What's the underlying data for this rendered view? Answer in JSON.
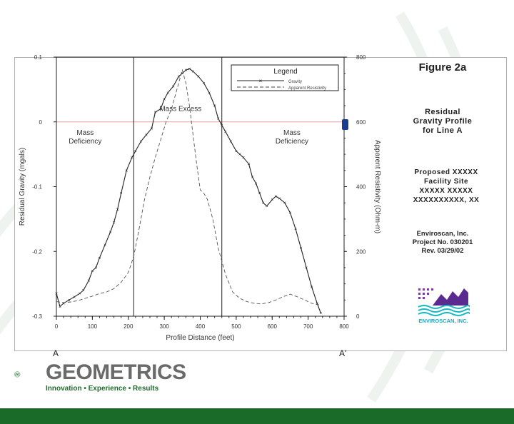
{
  "colors": {
    "brand_green": "#1a6b2a",
    "bar_green": "#1a6b2a",
    "curve": "#222222",
    "zero_line": "#e8a0a0"
  },
  "sidebar": {
    "figure": "Figure 2a",
    "title_lines": [
      "Residual",
      "Gravity Profile",
      "for Line A"
    ],
    "site_lines": [
      "Proposed XXXXX",
      "Facility Site",
      "XXXXX XXXXX",
      "XXXXXXXXXX, XX"
    ],
    "company_lines": [
      "Enviroscan, Inc.",
      "Project No. 030201",
      "Rev. 03/29/02"
    ],
    "logo_text": "ENVIROSCAN, INC."
  },
  "profile_ends": {
    "start": "A",
    "end": "A'"
  },
  "footer": {
    "brand": "GEOMETRICS",
    "tagline": "Innovation • Experience • Results"
  },
  "chart_data": {
    "type": "line",
    "xlabel": "Profile Distance (feet)",
    "ylabel": "Residual Gravity (mgals)",
    "y2label": "Apparent Resistivity (Ohm-m)",
    "xlim": [
      0,
      800
    ],
    "ylim": [
      -0.3,
      0.1
    ],
    "y2lim": [
      0,
      800
    ],
    "x_ticks": [
      0,
      100,
      200,
      300,
      400,
      500,
      600,
      700,
      800
    ],
    "y_ticks": [
      0.1,
      0,
      -0.1,
      -0.2,
      -0.3
    ],
    "y_tick_labels": [
      "0.1",
      "0",
      "-0.1",
      "-0.2",
      "-0.3"
    ],
    "y2_ticks": [
      800,
      600,
      400,
      200,
      0
    ],
    "y2_tick_labels": [
      "800",
      "600",
      "400",
      "200",
      "0"
    ],
    "region_boundaries_x": [
      215,
      460
    ],
    "zero_line_y": 0,
    "region_labels": [
      {
        "lines": [
          "Mass",
          "Deficiency"
        ],
        "x": 80,
        "y": -0.02
      },
      {
        "lines": [
          "Mass Excess"
        ],
        "x": 345,
        "y": 0.017
      },
      {
        "lines": [
          "Mass",
          "Deficiency"
        ],
        "x": 655,
        "y": -0.02
      }
    ],
    "legend": {
      "title": "Legend",
      "position": "top-right",
      "entries": [
        "Gravity",
        "Apparent Resistivity"
      ]
    },
    "series": [
      {
        "name": "Gravity",
        "axis": "left",
        "marker": "x",
        "x": [
          0,
          10,
          20,
          35,
          50,
          65,
          75,
          90,
          100,
          110,
          120,
          135,
          150,
          160,
          170,
          180,
          195,
          210,
          220,
          235,
          250,
          265,
          275,
          290,
          300,
          310,
          325,
          340,
          350,
          360,
          370,
          380,
          395,
          410,
          425,
          440,
          450,
          460,
          470,
          485,
          500,
          510,
          520,
          535,
          545,
          555,
          565,
          575,
          585,
          600,
          610,
          620,
          635,
          650,
          665,
          680,
          695,
          710,
          725,
          735
        ],
        "y": [
          -0.265,
          -0.285,
          -0.28,
          -0.275,
          -0.27,
          -0.265,
          -0.26,
          -0.245,
          -0.23,
          -0.225,
          -0.21,
          -0.19,
          -0.17,
          -0.155,
          -0.135,
          -0.11,
          -0.075,
          -0.055,
          -0.045,
          -0.03,
          -0.02,
          -0.01,
          0.015,
          0.02,
          0.035,
          0.045,
          0.055,
          0.07,
          0.075,
          0.08,
          0.082,
          0.078,
          0.07,
          0.06,
          0.045,
          0.025,
          0.005,
          -0.005,
          -0.015,
          -0.03,
          -0.045,
          -0.05,
          -0.055,
          -0.065,
          -0.085,
          -0.095,
          -0.11,
          -0.125,
          -0.13,
          -0.12,
          -0.115,
          -0.118,
          -0.125,
          -0.14,
          -0.165,
          -0.195,
          -0.225,
          -0.255,
          -0.28,
          -0.295
        ]
      },
      {
        "name": "Apparent Resistivity",
        "axis": "right",
        "dash": true,
        "x": [
          0,
          20,
          40,
          60,
          80,
          100,
          120,
          140,
          160,
          180,
          200,
          215,
          230,
          245,
          260,
          275,
          290,
          305,
          320,
          335,
          350,
          360,
          370,
          380,
          390,
          400,
          410,
          420,
          435,
          450,
          470,
          490,
          510,
          530,
          550,
          570,
          590,
          610,
          630,
          650,
          670,
          690,
          710,
          730
        ],
        "y": [
          45,
          42,
          44,
          48,
          55,
          62,
          70,
          75,
          85,
          105,
          135,
          185,
          270,
          360,
          430,
          490,
          545,
          600,
          640,
          700,
          760,
          720,
          650,
          560,
          470,
          390,
          380,
          360,
          300,
          210,
          130,
          75,
          55,
          45,
          40,
          38,
          42,
          50,
          60,
          68,
          60,
          50,
          40,
          35
        ]
      }
    ]
  }
}
